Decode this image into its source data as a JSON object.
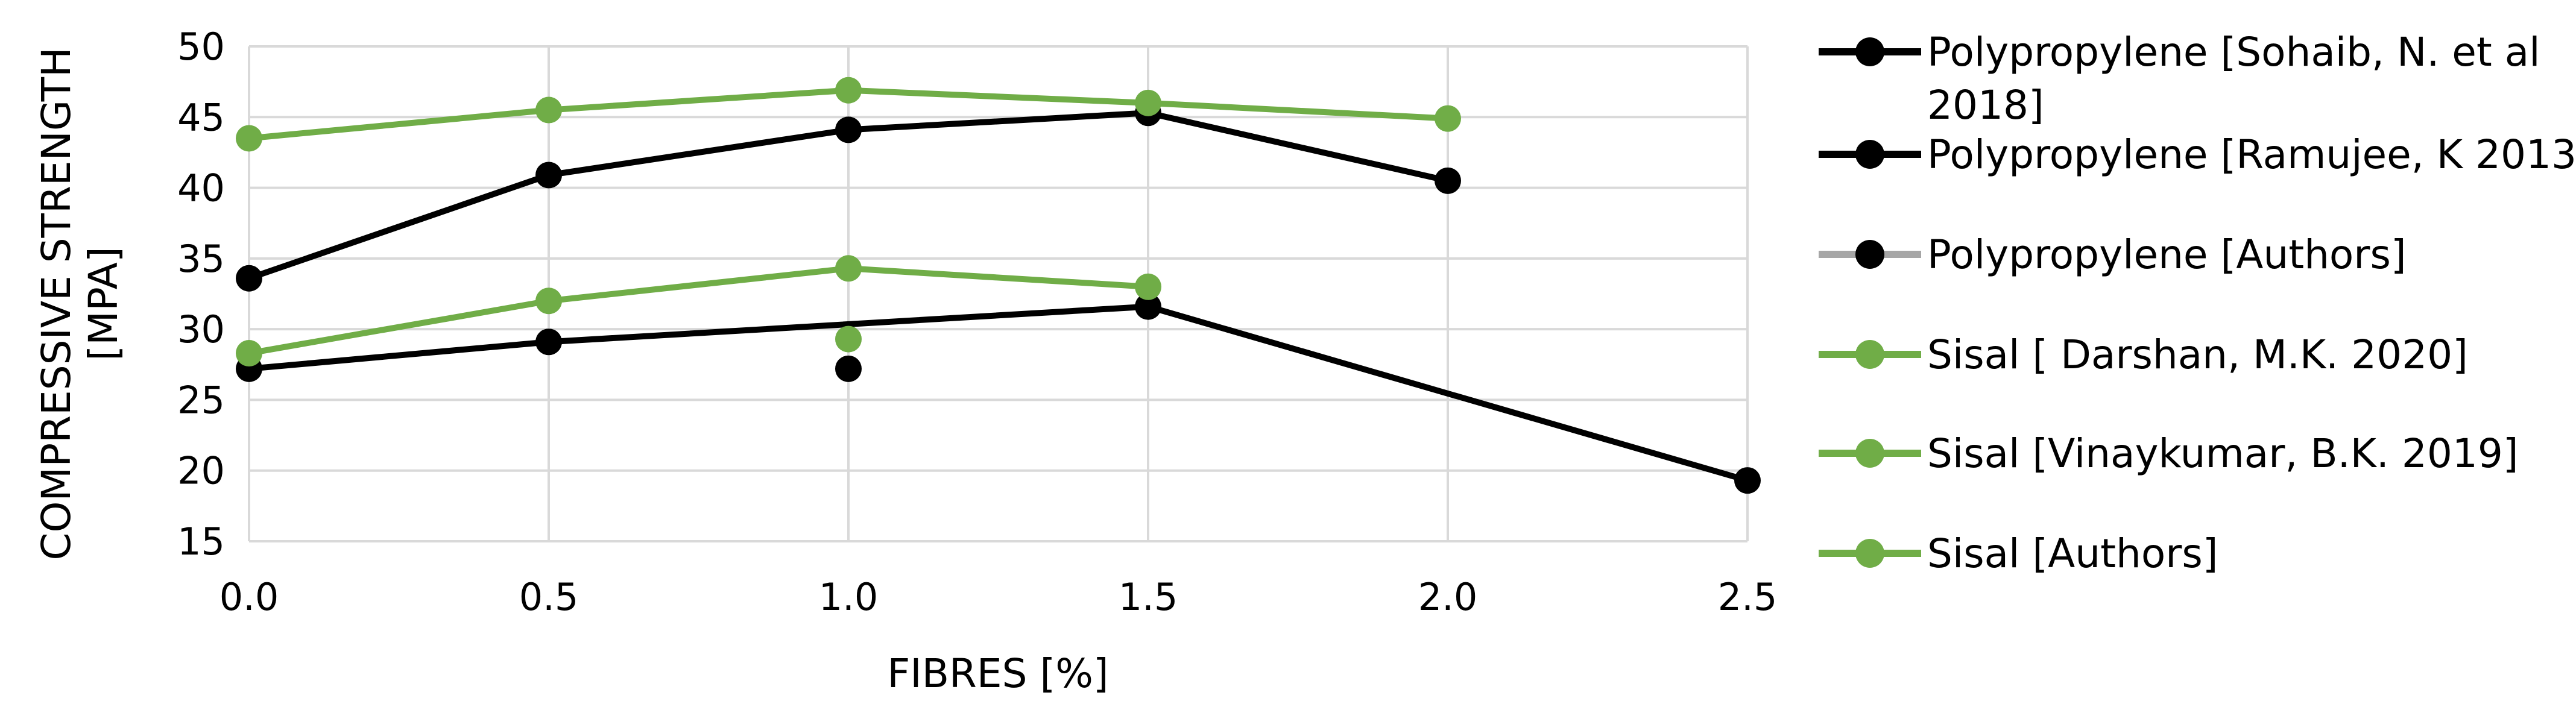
{
  "chart_data": {
    "type": "line",
    "xlabel": "FIBRES [%]",
    "ylabel_lines": [
      "COMPRESSIVE STRENGTH",
      "[MPA]"
    ],
    "xlim": [
      0,
      2.5
    ],
    "ylim": [
      15,
      50
    ],
    "xticks": [
      "0.0",
      "0.5",
      "1.0",
      "1.5",
      "2.0",
      "2.5"
    ],
    "yticks": [
      "15",
      "20",
      "25",
      "30",
      "35",
      "40",
      "45",
      "50"
    ],
    "grid": true,
    "legend_position": "right",
    "series": [
      {
        "name_lines": [
          "Polypropylene  [Sohaib, N. et al",
          "2018]"
        ],
        "line_color": "#000000",
        "marker_color": "#000000",
        "points": [
          [
            0,
            33.6
          ],
          [
            0.5,
            40.9
          ],
          [
            1.0,
            44.1
          ],
          [
            1.5,
            45.3
          ],
          [
            2.0,
            40.5
          ]
        ]
      },
      {
        "name_lines": [
          "Polypropylene  [Ramujee, K 2013]"
        ],
        "line_color": "#000000",
        "marker_color": "#000000",
        "points": [
          [
            0,
            27.2
          ],
          [
            0.5,
            29.1
          ],
          [
            1.5,
            31.6
          ],
          [
            2.5,
            19.3
          ]
        ]
      },
      {
        "name_lines": [
          "Polypropylene [Authors]"
        ],
        "line_color": "#a6a6a6",
        "marker_color": "#000000",
        "points": [
          [
            1.0,
            27.2
          ]
        ]
      },
      {
        "name_lines": [
          "Sisal [ Darshan, M.K. 2020]"
        ],
        "line_color": "#70ad47",
        "marker_color": "#70ad47",
        "points": [
          [
            0,
            43.5
          ],
          [
            0.5,
            45.5
          ],
          [
            1.0,
            46.9
          ],
          [
            1.5,
            46.0
          ],
          [
            2.0,
            44.9
          ]
        ]
      },
      {
        "name_lines": [
          "Sisal [Vinaykumar, B.K. 2019]"
        ],
        "line_color": "#70ad47",
        "marker_color": "#70ad47",
        "points": [
          [
            0,
            28.3
          ],
          [
            0.5,
            32.0
          ],
          [
            1.0,
            34.3
          ],
          [
            1.5,
            33.0
          ]
        ]
      },
      {
        "name_lines": [
          "Sisal [Authors]"
        ],
        "line_color": "#70ad47",
        "marker_color": "#70ad47",
        "points": [
          [
            1.0,
            29.3
          ]
        ]
      }
    ]
  }
}
